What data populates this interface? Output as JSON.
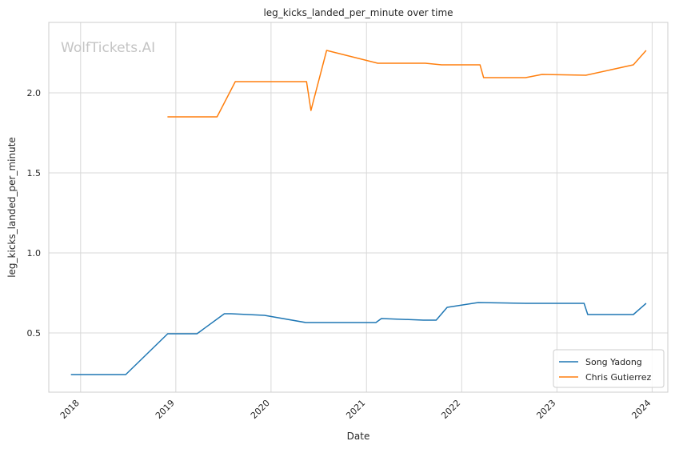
{
  "chart_data": {
    "type": "line",
    "title": "leg_kicks_landed_per_minute over time",
    "xlabel": "Date",
    "ylabel": "leg_kicks_landed_per_minute",
    "watermark": "WolfTickets.AI",
    "x_ticks": [
      "2018",
      "2019",
      "2020",
      "2021",
      "2022",
      "2023",
      "2024"
    ],
    "y_ticks": [
      "0.5",
      "1.0",
      "1.5",
      "2.0"
    ],
    "xlim": [
      "2017-09-01",
      "2024-03-01"
    ],
    "ylim": [
      0.13,
      2.44
    ],
    "grid": true,
    "legend_position": "bottom-right",
    "series": [
      {
        "name": "Song Yadong",
        "color": "#1f77b4",
        "points": [
          [
            "2017-11-25",
            0.24
          ],
          [
            "2018-06-23",
            0.24
          ],
          [
            "2018-12-01",
            0.495
          ],
          [
            "2019-03-23",
            0.495
          ],
          [
            "2019-07-06",
            0.62
          ],
          [
            "2019-08-01",
            0.62
          ],
          [
            "2019-12-07",
            0.61
          ],
          [
            "2020-05-13",
            0.565
          ],
          [
            "2021-02-06",
            0.565
          ],
          [
            "2021-02-27",
            0.59
          ],
          [
            "2021-08-07",
            0.58
          ],
          [
            "2021-09-25",
            0.58
          ],
          [
            "2021-11-06",
            0.66
          ],
          [
            "2022-03-05",
            0.69
          ],
          [
            "2022-09-03",
            0.685
          ],
          [
            "2023-04-15",
            0.685
          ],
          [
            "2023-04-29",
            0.615
          ],
          [
            "2023-10-21",
            0.615
          ],
          [
            "2023-12-09",
            0.685
          ]
        ]
      },
      {
        "name": "Chris Gutierrez",
        "color": "#ff7f0e",
        "points": [
          [
            "2018-11-30",
            1.85
          ],
          [
            "2019-06-08",
            1.85
          ],
          [
            "2019-08-17",
            2.07
          ],
          [
            "2020-05-16",
            2.07
          ],
          [
            "2020-06-02",
            1.89
          ],
          [
            "2020-08-01",
            2.265
          ],
          [
            "2021-02-13",
            2.185
          ],
          [
            "2021-08-14",
            2.185
          ],
          [
            "2021-10-16",
            2.175
          ],
          [
            "2022-03-12",
            2.175
          ],
          [
            "2022-03-26",
            2.095
          ],
          [
            "2022-09-03",
            2.095
          ],
          [
            "2022-11-05",
            2.115
          ],
          [
            "2023-04-22",
            2.11
          ],
          [
            "2023-10-21",
            2.175
          ],
          [
            "2023-12-09",
            2.265
          ]
        ]
      }
    ]
  }
}
